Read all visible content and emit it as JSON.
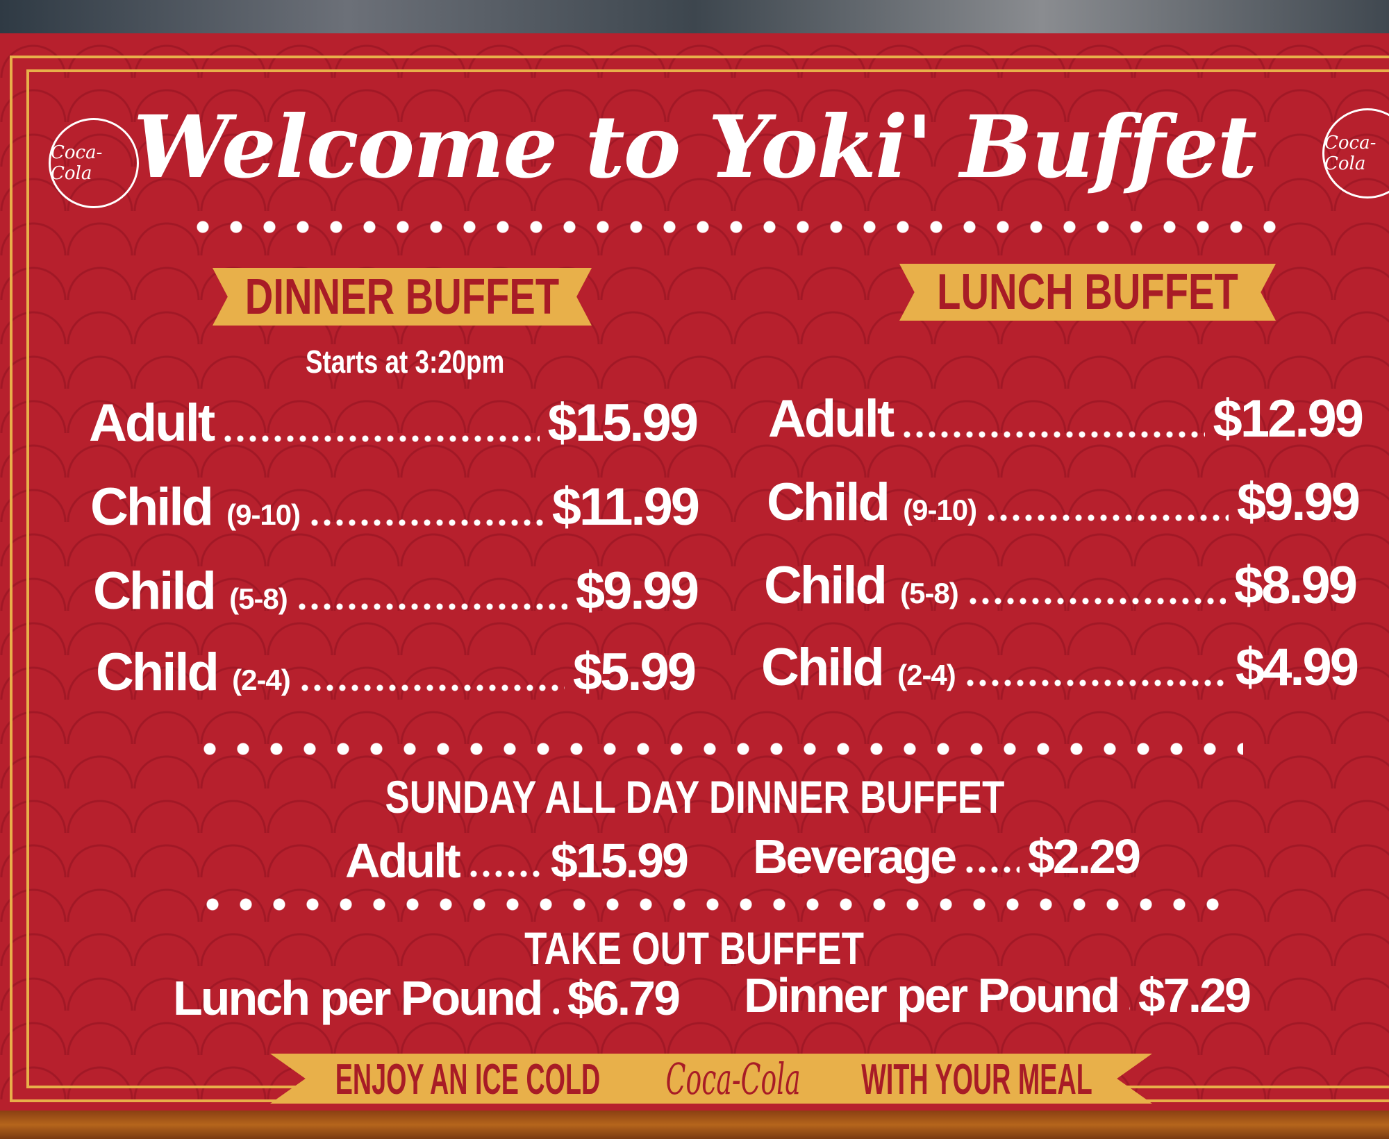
{
  "title": "Welcome to Yoki' Buffet",
  "logo_text": "Coca-Cola",
  "dinner": {
    "heading": "DINNER BUFFET",
    "note": "Starts at 3:20pm",
    "rows": [
      {
        "label": "Adult",
        "age": "",
        "price": "$15.99"
      },
      {
        "label": "Child",
        "age": "(9-10)",
        "price": "$11.99"
      },
      {
        "label": "Child",
        "age": "(5-8)",
        "price": "$9.99"
      },
      {
        "label": "Child",
        "age": "(2-4)",
        "price": "$5.99"
      }
    ]
  },
  "lunch": {
    "heading": "LUNCH BUFFET",
    "rows": [
      {
        "label": "Adult",
        "age": "",
        "price": "$12.99"
      },
      {
        "label": "Child",
        "age": "(9-10)",
        "price": "$9.99"
      },
      {
        "label": "Child",
        "age": "(5-8)",
        "price": "$8.99"
      },
      {
        "label": "Child",
        "age": "(2-4)",
        "price": "$4.99"
      }
    ]
  },
  "sunday": {
    "heading": "SUNDAY ALL DAY DINNER BUFFET",
    "adult": {
      "label": "Adult",
      "price": "$15.99"
    },
    "beverage": {
      "label": "Beverage",
      "price": "$2.29"
    }
  },
  "takeout": {
    "heading": "TAKE OUT BUFFET",
    "lunch": {
      "label": "Lunch per Pound",
      "price": "$6.79"
    },
    "dinner": {
      "label": "Dinner per Pound",
      "price": "$7.29"
    }
  },
  "footer": {
    "before": "ENJOY AN ICE COLD",
    "brand": "Coca-Cola",
    "after": "WITH YOUR MEAL"
  },
  "colors": {
    "board": "#b7202d",
    "gold": "#e8b04a",
    "text": "#ffffff"
  }
}
